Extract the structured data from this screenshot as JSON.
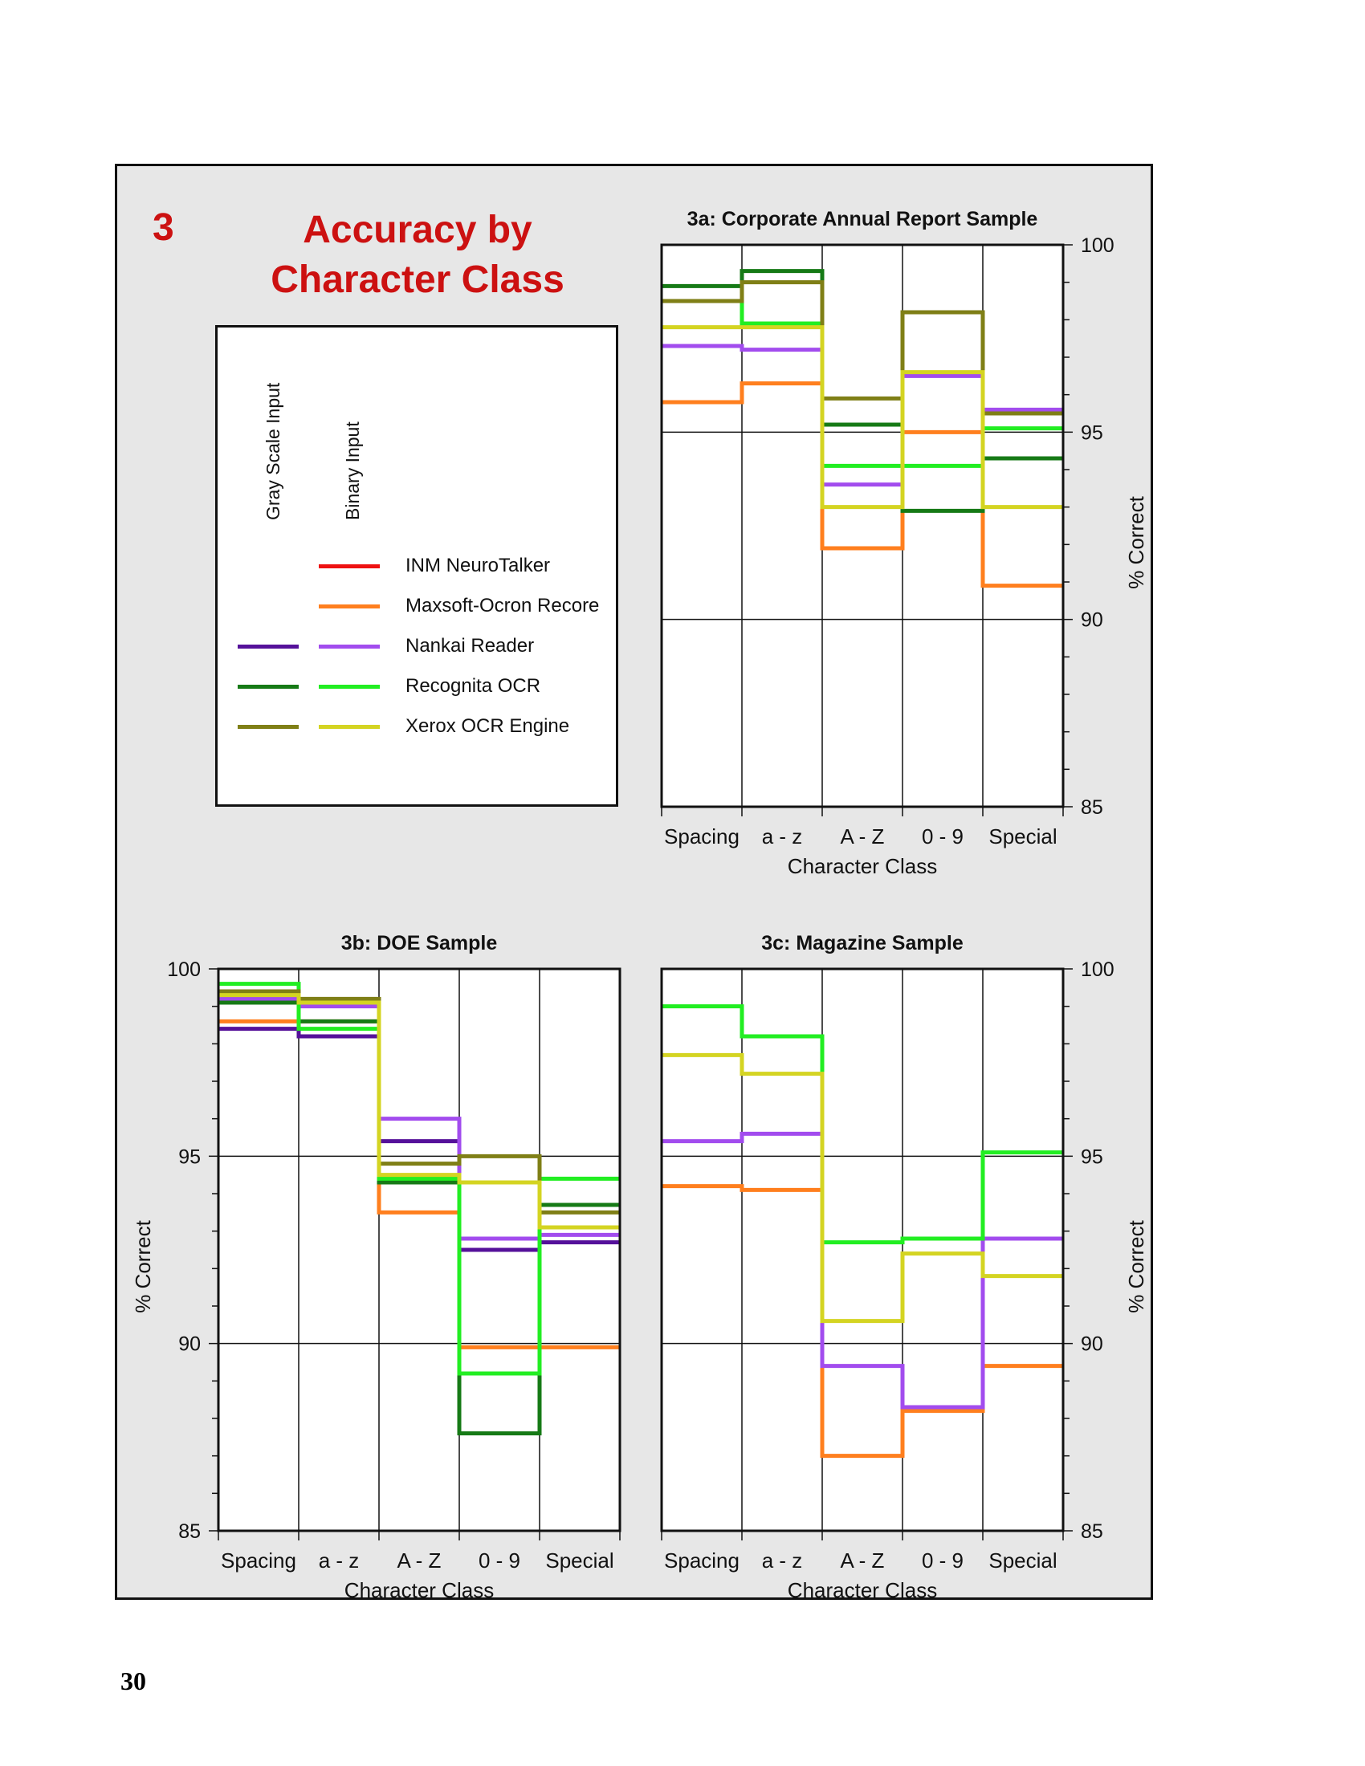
{
  "figure": {
    "number": "3",
    "title_line1": "Accuracy by",
    "title_line2": "Character Class",
    "page_number": "30"
  },
  "legend": {
    "gray_header": "Gray Scale Input",
    "binary_header": "Binary Input",
    "entries": [
      {
        "label": "INM NeuroTalker",
        "gray_color": null,
        "binary_color": "#ee1111"
      },
      {
        "label": "Maxsoft-Ocron Recore",
        "gray_color": null,
        "binary_color": "#ff7f1e"
      },
      {
        "label": "Nankai Reader",
        "gray_color": "#55119a",
        "binary_color": "#a24cee"
      },
      {
        "label": "Recognita OCR",
        "gray_color": "#167a16",
        "binary_color": "#22ee22"
      },
      {
        "label": "Xerox OCR Engine",
        "gray_color": "#7f7f16",
        "binary_color": "#d4d422"
      }
    ]
  },
  "chart_data": [
    {
      "type": "line",
      "step": true,
      "title": "3a:  Corporate Annual Report Sample",
      "xlabel": "Character Class",
      "ylabel": "% Correct",
      "y_axis_side": "right",
      "categories": [
        "Spacing",
        "a - z",
        "A - Z",
        "0 - 9",
        "Special"
      ],
      "ylim": [
        85,
        100
      ],
      "yticks": [
        85,
        90,
        95,
        100
      ],
      "grid": true,
      "series": [
        {
          "name": "Maxsoft-Ocron Recore",
          "input": "binary",
          "color": "#ff7f1e",
          "values": [
            95.8,
            96.3,
            91.9,
            95.0,
            90.9
          ]
        },
        {
          "name": "Nankai Reader",
          "input": "binary",
          "color": "#a24cee",
          "values": [
            97.3,
            97.2,
            93.6,
            96.5,
            95.6
          ]
        },
        {
          "name": "Recognita OCR",
          "input": "gray",
          "color": "#167a16",
          "values": [
            98.9,
            99.3,
            95.2,
            92.9,
            94.3
          ]
        },
        {
          "name": "Recognita OCR",
          "input": "binary",
          "color": "#22ee22",
          "values": [
            98.5,
            97.9,
            94.1,
            94.1,
            95.1
          ]
        },
        {
          "name": "Xerox OCR Engine",
          "input": "gray",
          "color": "#7f7f16",
          "values": [
            98.5,
            99.0,
            95.9,
            98.2,
            95.5
          ]
        },
        {
          "name": "Xerox OCR Engine",
          "input": "binary",
          "color": "#d4d422",
          "values": [
            97.8,
            97.8,
            93.0,
            96.6,
            93.0
          ]
        }
      ]
    },
    {
      "type": "line",
      "step": true,
      "title": "3b:  DOE Sample",
      "xlabel": "Character Class",
      "ylabel": "% Correct",
      "y_axis_side": "left",
      "categories": [
        "Spacing",
        "a - z",
        "A - Z",
        "0 - 9",
        "Special"
      ],
      "ylim": [
        85,
        100
      ],
      "yticks": [
        85,
        90,
        95,
        100
      ],
      "grid": true,
      "series": [
        {
          "name": "Maxsoft-Ocron Recore",
          "input": "binary",
          "color": "#ff7f1e",
          "values": [
            98.6,
            98.6,
            93.5,
            89.9,
            89.9
          ]
        },
        {
          "name": "Nankai Reader",
          "input": "gray",
          "color": "#55119a",
          "values": [
            98.4,
            98.2,
            95.4,
            92.5,
            92.7
          ]
        },
        {
          "name": "Nankai Reader",
          "input": "binary",
          "color": "#a24cee",
          "values": [
            99.2,
            99.0,
            96.0,
            92.8,
            92.9
          ]
        },
        {
          "name": "Recognita OCR",
          "input": "gray",
          "color": "#167a16",
          "values": [
            99.1,
            98.6,
            94.3,
            87.6,
            93.7
          ]
        },
        {
          "name": "Recognita OCR",
          "input": "binary",
          "color": "#22ee22",
          "values": [
            99.6,
            98.4,
            94.4,
            89.2,
            94.4
          ]
        },
        {
          "name": "Xerox OCR Engine",
          "input": "gray",
          "color": "#7f7f16",
          "values": [
            99.4,
            99.2,
            94.8,
            95.0,
            93.5
          ]
        },
        {
          "name": "Xerox OCR Engine",
          "input": "binary",
          "color": "#d4d422",
          "values": [
            99.3,
            99.1,
            94.5,
            94.3,
            93.1
          ]
        }
      ]
    },
    {
      "type": "line",
      "step": true,
      "title": "3c:  Magazine Sample",
      "xlabel": "Character Class",
      "ylabel": "% Correct",
      "y_axis_side": "right",
      "categories": [
        "Spacing",
        "a - z",
        "A - Z",
        "0 - 9",
        "Special"
      ],
      "ylim": [
        85,
        100
      ],
      "yticks": [
        85,
        90,
        95,
        100
      ],
      "grid": true,
      "series": [
        {
          "name": "Maxsoft-Ocron Recore",
          "input": "binary",
          "color": "#ff7f1e",
          "values": [
            94.2,
            94.1,
            87.0,
            88.2,
            89.4
          ]
        },
        {
          "name": "Nankai Reader",
          "input": "binary",
          "color": "#a24cee",
          "values": [
            95.4,
            95.6,
            89.4,
            88.3,
            92.8
          ]
        },
        {
          "name": "Recognita OCR",
          "input": "binary",
          "color": "#22ee22",
          "values": [
            99.0,
            98.2,
            92.7,
            92.8,
            95.1
          ]
        },
        {
          "name": "Xerox OCR Engine",
          "input": "binary",
          "color": "#d4d422",
          "values": [
            97.7,
            97.2,
            90.6,
            92.4,
            91.8
          ]
        }
      ]
    }
  ]
}
